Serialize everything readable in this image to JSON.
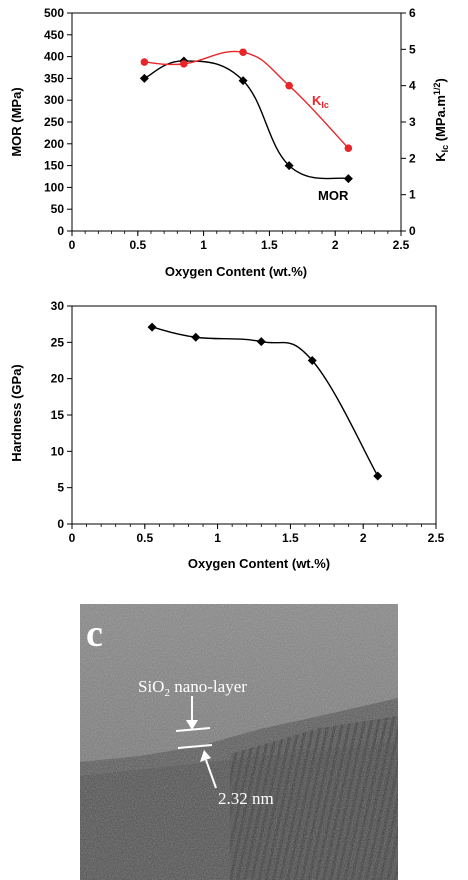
{
  "chart_data": [
    {
      "type": "line",
      "xlabel": "Oxygen Content (wt.%)",
      "ylabel": "MOR (MPa)",
      "y2label": {
        "base": "K",
        "sub": "Ic",
        "units_pre": " (MPa.m",
        "sup": "1/2",
        "units_post": ")"
      },
      "xlim": [
        0,
        2.5
      ],
      "ylim": [
        0,
        500
      ],
      "y2lim": [
        0,
        6
      ],
      "xticks": [
        "0",
        "0.5",
        "1",
        "1.5",
        "2",
        "2.5"
      ],
      "yticks": [
        "0",
        "50",
        "100",
        "150",
        "200",
        "250",
        "300",
        "350",
        "400",
        "450",
        "500"
      ],
      "y2ticks": [
        "0",
        "1",
        "2",
        "3",
        "4",
        "5",
        "6"
      ],
      "grid": false,
      "series": [
        {
          "name": "MOR",
          "axis": "left",
          "color": "#000000",
          "marker": "diamond",
          "x": [
            0.55,
            0.85,
            1.3,
            1.65,
            2.1
          ],
          "y": [
            350,
            390,
            345,
            150,
            120
          ]
        },
        {
          "name": "KIc",
          "label_base": "K",
          "label_sub": "Ic",
          "axis": "right",
          "color": "#e8262a",
          "marker": "circle",
          "x": [
            0.55,
            0.85,
            1.3,
            1.65,
            2.1
          ],
          "y": [
            4.65,
            4.6,
            4.92,
            4.0,
            2.28
          ]
        }
      ]
    },
    {
      "type": "line",
      "xlabel": "Oxygen Content (wt.%)",
      "ylabel": "Hardness (GPa)",
      "xlim": [
        0,
        2.5
      ],
      "ylim": [
        0,
        30
      ],
      "xticks": [
        "0",
        "0.5",
        "1",
        "1.5",
        "2",
        "2.5"
      ],
      "yticks": [
        "0",
        "5",
        "10",
        "15",
        "20",
        "25",
        "30"
      ],
      "grid": false,
      "series": [
        {
          "color": "#000000",
          "marker": "diamond",
          "x": [
            0.55,
            0.85,
            1.3,
            1.65,
            2.1
          ],
          "y": [
            27.1,
            25.7,
            25.1,
            22.5,
            6.6
          ]
        }
      ]
    }
  ],
  "tem": {
    "panel_letter": "c",
    "layer_label": "SiO",
    "layer_label_sub": "2",
    "layer_label_rest": " nano-layer",
    "thickness_label": "2.32 nm"
  }
}
